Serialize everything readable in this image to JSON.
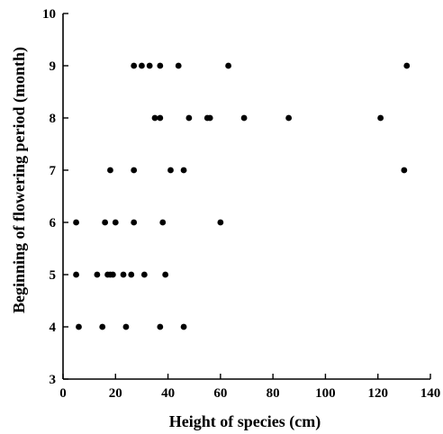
{
  "chart_data": {
    "type": "scatter",
    "title": "",
    "xlabel": "Height of species (cm)",
    "ylabel": "Beginning of flowering period (month)",
    "xlim": [
      0,
      140
    ],
    "ylim": [
      3,
      10
    ],
    "xticks": [
      0,
      20,
      40,
      60,
      80,
      100,
      120,
      140
    ],
    "yticks": [
      3,
      4,
      5,
      6,
      7,
      8,
      9,
      10
    ],
    "grid": false,
    "legend": "none",
    "marker_color": "#000000",
    "points": [
      {
        "x": 6,
        "y": 4
      },
      {
        "x": 15,
        "y": 4
      },
      {
        "x": 24,
        "y": 4
      },
      {
        "x": 37,
        "y": 4
      },
      {
        "x": 46,
        "y": 4
      },
      {
        "x": 5,
        "y": 5
      },
      {
        "x": 13,
        "y": 5
      },
      {
        "x": 17,
        "y": 5
      },
      {
        "x": 18,
        "y": 5
      },
      {
        "x": 19,
        "y": 5
      },
      {
        "x": 23,
        "y": 5
      },
      {
        "x": 26,
        "y": 5
      },
      {
        "x": 31,
        "y": 5
      },
      {
        "x": 39,
        "y": 5
      },
      {
        "x": 5,
        "y": 6
      },
      {
        "x": 16,
        "y": 6
      },
      {
        "x": 20,
        "y": 6
      },
      {
        "x": 27,
        "y": 6
      },
      {
        "x": 38,
        "y": 6
      },
      {
        "x": 60,
        "y": 6
      },
      {
        "x": 18,
        "y": 7
      },
      {
        "x": 27,
        "y": 7
      },
      {
        "x": 41,
        "y": 7
      },
      {
        "x": 46,
        "y": 7
      },
      {
        "x": 130,
        "y": 7
      },
      {
        "x": 35,
        "y": 8
      },
      {
        "x": 37,
        "y": 8
      },
      {
        "x": 48,
        "y": 8
      },
      {
        "x": 55,
        "y": 8
      },
      {
        "x": 56,
        "y": 8
      },
      {
        "x": 69,
        "y": 8
      },
      {
        "x": 86,
        "y": 8
      },
      {
        "x": 121,
        "y": 8
      },
      {
        "x": 27,
        "y": 9
      },
      {
        "x": 30,
        "y": 9
      },
      {
        "x": 33,
        "y": 9
      },
      {
        "x": 37,
        "y": 9
      },
      {
        "x": 44,
        "y": 9
      },
      {
        "x": 63,
        "y": 9
      },
      {
        "x": 131,
        "y": 9
      }
    ]
  }
}
